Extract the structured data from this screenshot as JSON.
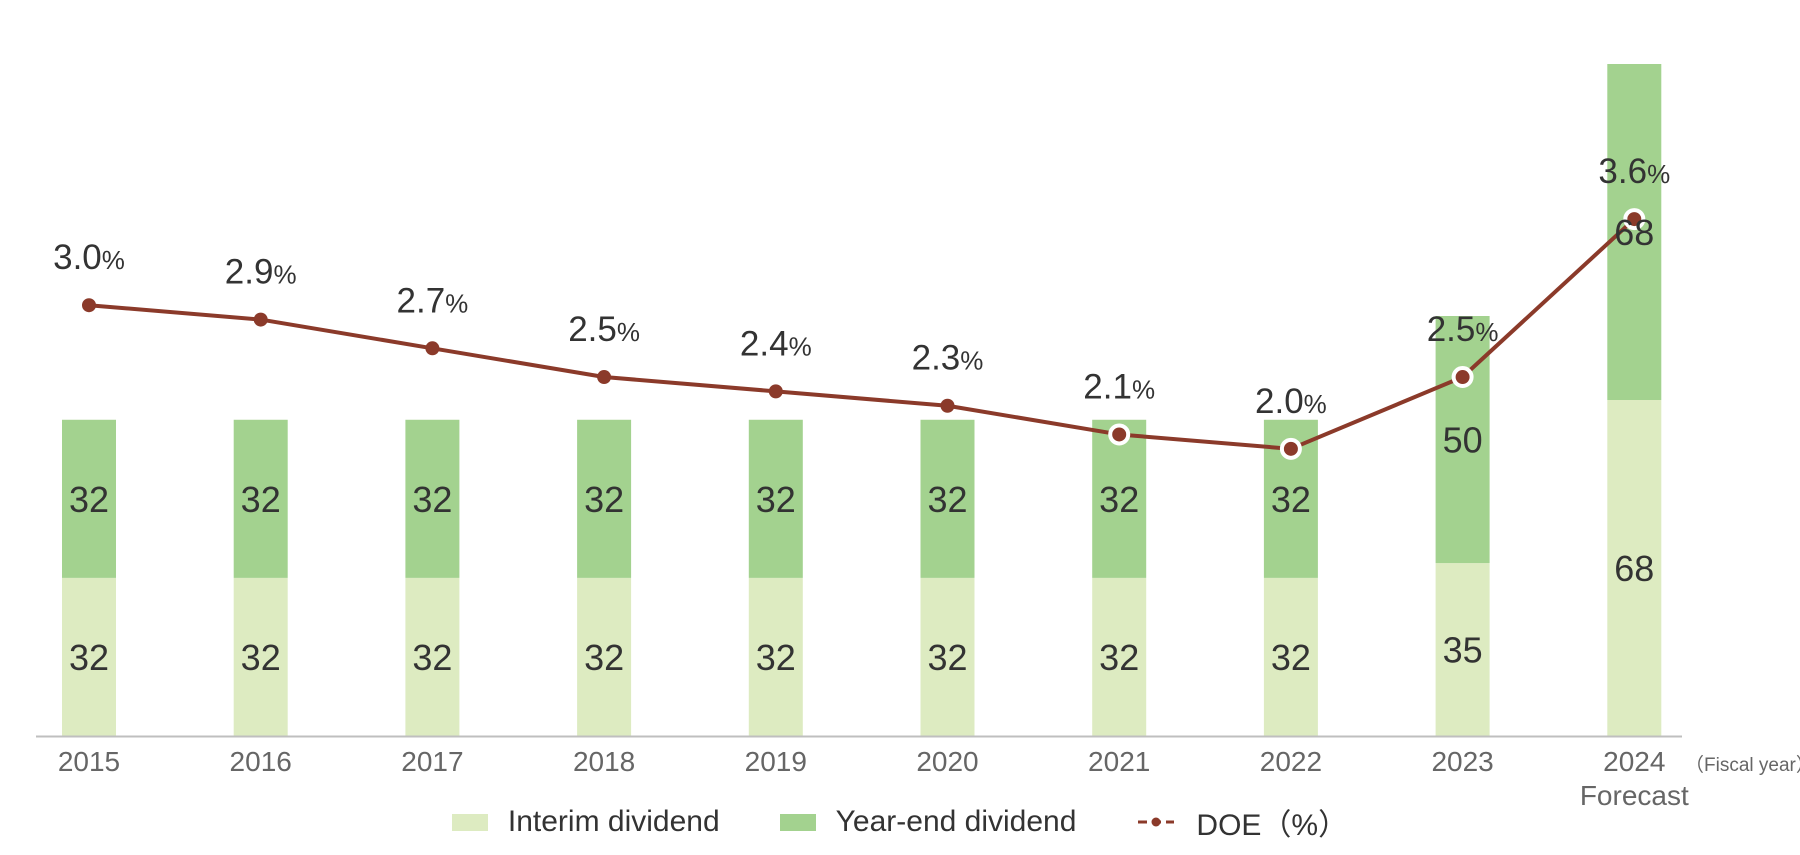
{
  "chart_data": {
    "type": "bar",
    "categories": [
      "2015",
      "2016",
      "2017",
      "2018",
      "2019",
      "2020",
      "2021",
      "2022",
      "2023",
      "2024"
    ],
    "category_sublabels": [
      "",
      "",
      "",
      "",
      "",
      "",
      "",
      "",
      "",
      "Forecast"
    ],
    "axis_unit_label": "（Fiscal year）",
    "stacked": true,
    "series": [
      {
        "name": "Interim dividend",
        "type": "bar",
        "values": [
          32,
          32,
          32,
          32,
          32,
          32,
          32,
          32,
          35,
          68
        ]
      },
      {
        "name": "Year-end dividend",
        "type": "bar",
        "values": [
          32,
          32,
          32,
          32,
          32,
          32,
          32,
          32,
          50,
          68
        ]
      },
      {
        "name": "DOE",
        "type": "line",
        "values": [
          3.0,
          2.9,
          2.7,
          2.5,
          2.4,
          2.3,
          2.1,
          2.0,
          2.5,
          3.6
        ],
        "labels": [
          "3.0",
          "2.9",
          "2.7",
          "2.5",
          "2.4",
          "2.3",
          "2.1",
          "2.0",
          "2.5",
          "3.6"
        ],
        "unit": "%"
      }
    ],
    "bar_ylim": [
      0,
      136
    ],
    "line_ylim": [
      0,
      4.68
    ],
    "legend": {
      "position": "bottom",
      "items": [
        {
          "label": "Interim dividend",
          "kind": "bar",
          "series": "Interim dividend"
        },
        {
          "label": "Year-end dividend",
          "kind": "bar",
          "series": "Year-end dividend"
        },
        {
          "label": "DOE（%）",
          "kind": "line",
          "series": "DOE"
        }
      ]
    },
    "colors": {
      "interim": "#ddebc1",
      "yearend": "#a3d28f",
      "doe_line": "#8b3a2a",
      "axis": "#bfbfbf",
      "label_text": "#333333",
      "tick_text": "#666666"
    },
    "open_marker_indices": [
      6,
      7,
      8,
      9
    ]
  }
}
